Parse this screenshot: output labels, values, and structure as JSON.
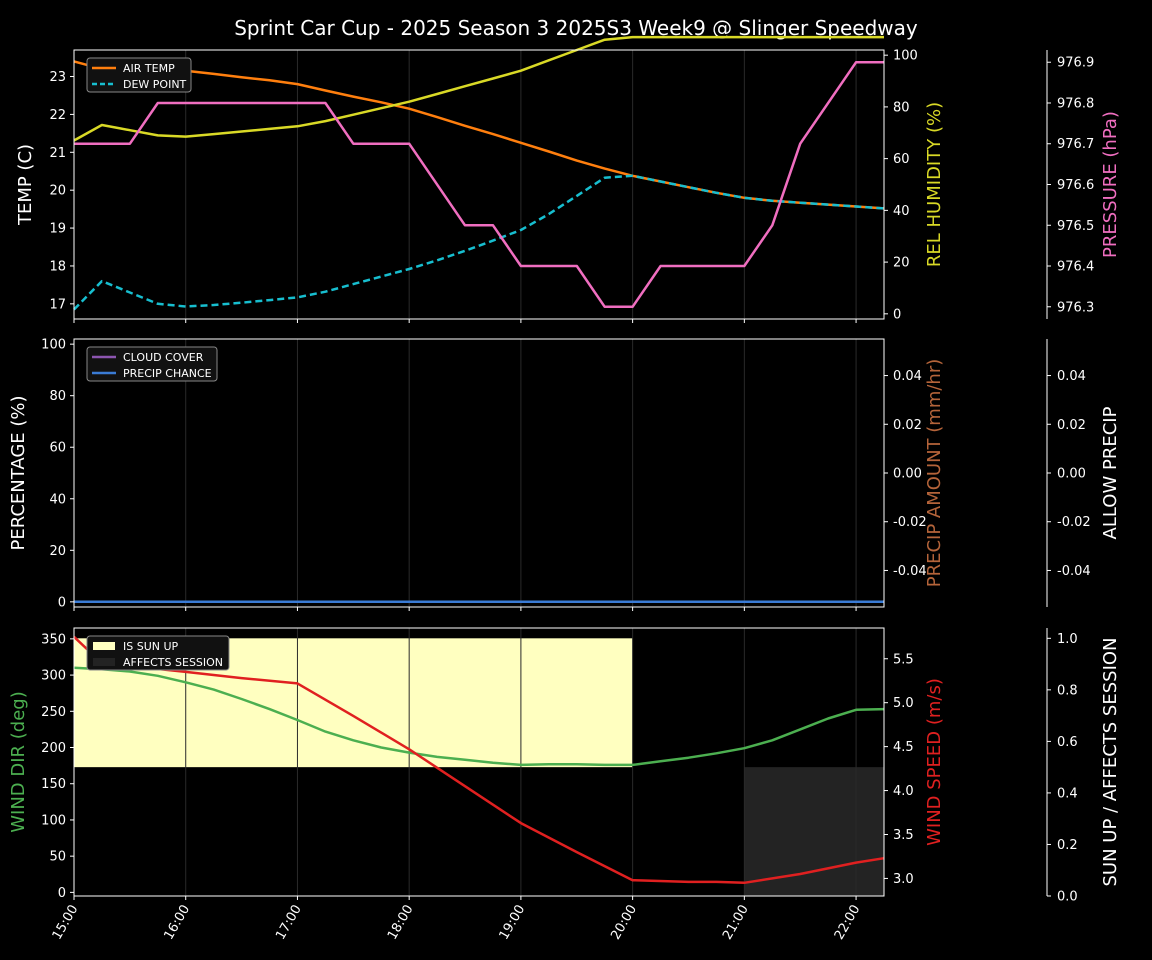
{
  "title": "Sprint Car Cup - 2025 Season 3 2025S3 Week9 @ Slinger Speedway",
  "colors": {
    "air_temp": "#ff7f0e",
    "dew_point": "#17becf",
    "humidity": "#d9d926",
    "pressure": "#f06ec0",
    "cloud_cover": "#8c55b0",
    "precip_chance": "#3a7bd5",
    "precip_amount": "#b5643a",
    "wind_dir": "#4caf50",
    "wind_speed": "#e02020",
    "sun_up": "#ffffc0",
    "affects_session": "#232323"
  },
  "chart_data": [
    {
      "type": "line",
      "panel": "top",
      "x_ticks": [
        "15:00",
        "16:00",
        "17:00",
        "18:00",
        "19:00",
        "20:00",
        "21:00",
        "22:00"
      ],
      "xlim": [
        15.0,
        22.25
      ],
      "ylabel": "TEMP (C)",
      "ylim": [
        16.6,
        23.7
      ],
      "yticks": [
        17,
        18,
        19,
        20,
        21,
        22,
        23
      ],
      "ylabel2": "REL HUMIDITY (%)",
      "ylim2": [
        -2,
        102
      ],
      "yticks2": [
        0,
        20,
        40,
        60,
        80,
        100
      ],
      "ylabel3": "PRESSURE (hPa)",
      "ylim3": [
        976.27,
        976.93
      ],
      "yticks3": [
        "976.3",
        "976.4",
        "976.5",
        "976.6",
        "976.7",
        "976.8",
        "976.9"
      ],
      "legend": [
        "AIR TEMP",
        "DEW POINT"
      ],
      "legend_position": "top-left",
      "series": [
        {
          "name": "AIR TEMP",
          "axis": "left",
          "x": [
            15,
            15.25,
            15.5,
            15.75,
            16,
            16.25,
            16.5,
            16.75,
            17,
            17.25,
            17.5,
            17.75,
            18,
            18.25,
            18.5,
            18.75,
            19,
            19.25,
            19.5,
            19.75,
            20,
            20.25,
            20.5,
            20.75,
            21,
            21.25,
            21.5,
            21.75,
            22,
            22.25
          ],
          "values": [
            23.4,
            23.2,
            23.2,
            23.2,
            23.15,
            23.07,
            22.98,
            22.9,
            22.8,
            22.63,
            22.47,
            22.32,
            22.15,
            21.93,
            21.7,
            21.48,
            21.25,
            21.02,
            20.78,
            20.57,
            20.38,
            20.23,
            20.08,
            19.93,
            19.8,
            19.72,
            19.67,
            19.62,
            19.57,
            19.52
          ]
        },
        {
          "name": "DEW POINT",
          "axis": "left",
          "x": [
            15,
            15.25,
            15.5,
            15.75,
            16,
            16.25,
            16.5,
            16.75,
            17,
            17.25,
            17.5,
            17.75,
            18,
            18.25,
            18.5,
            18.75,
            19,
            19.25,
            19.5,
            19.75,
            20,
            20.25,
            20.5,
            20.75,
            21,
            21.25,
            21.5,
            21.75,
            22,
            22.25
          ],
          "values": [
            16.85,
            17.6,
            17.3,
            17.0,
            16.93,
            16.97,
            17.03,
            17.1,
            17.17,
            17.32,
            17.52,
            17.72,
            17.92,
            18.15,
            18.4,
            18.67,
            18.95,
            19.37,
            19.85,
            20.33,
            20.38,
            20.23,
            20.08,
            19.93,
            19.8,
            19.72,
            19.67,
            19.62,
            19.57,
            19.52
          ]
        },
        {
          "name": "REL HUMIDITY",
          "axis": "right",
          "x": [
            15,
            15.25,
            15.5,
            15.75,
            16,
            16.25,
            16.5,
            16.75,
            17,
            17.25,
            17.5,
            17.75,
            18,
            18.25,
            18.5,
            18.75,
            19,
            19.25,
            19.5,
            19.75,
            20,
            20.25,
            20.5,
            20.75,
            21,
            21.25,
            21.5,
            21.75,
            22,
            22.25
          ],
          "values": [
            67,
            73,
            71,
            69,
            68.5,
            69.5,
            70.5,
            71.5,
            72.5,
            74.5,
            77,
            79.5,
            82,
            85,
            88,
            91,
            94,
            98,
            102,
            106,
            107,
            107,
            107,
            107,
            107,
            107,
            107,
            107,
            107,
            107
          ]
        },
        {
          "name": "PRESSURE",
          "axis": "third",
          "x": [
            15,
            15.5,
            15.75,
            17.25,
            17.5,
            18,
            18.5,
            18.75,
            19,
            19.5,
            19.75,
            20,
            20.25,
            21,
            21.25,
            21.5,
            22,
            22.25
          ],
          "values": [
            976.7,
            976.7,
            976.8,
            976.8,
            976.7,
            976.7,
            976.5,
            976.5,
            976.4,
            976.4,
            976.3,
            976.3,
            976.4,
            976.4,
            976.5,
            976.7,
            976.9,
            976.9
          ]
        }
      ]
    },
    {
      "type": "line",
      "panel": "middle",
      "ylabel": "PERCENTAGE (%)",
      "ylim": [
        -2,
        102
      ],
      "yticks": [
        0,
        20,
        40,
        60,
        80,
        100
      ],
      "ylabel2": "PRECIP AMOUNT (mm/hr)",
      "ylim2": [
        -0.055,
        0.055
      ],
      "yticks2": [
        "-0.04",
        "-0.02",
        "0.00",
        "0.02",
        "0.04"
      ],
      "ylabel3": "ALLOW PRECIP",
      "ylim3": [
        -0.055,
        0.055
      ],
      "yticks3": [
        "-0.04",
        "-0.02",
        "0.00",
        "0.02",
        "0.04"
      ],
      "legend": [
        "CLOUD COVER",
        "PRECIP CHANCE"
      ],
      "legend_position": "top-left",
      "series": [
        {
          "name": "CLOUD COVER",
          "x": [
            15,
            22.25
          ],
          "values": [
            0,
            0
          ]
        },
        {
          "name": "PRECIP CHANCE",
          "x": [
            15,
            22.25
          ],
          "values": [
            0,
            0
          ]
        }
      ]
    },
    {
      "type": "line",
      "panel": "bottom",
      "ylabel": "WIND DIR (deg)",
      "ylim": [
        -5,
        365
      ],
      "yticks": [
        0,
        50,
        100,
        150,
        200,
        250,
        300,
        350
      ],
      "ylabel2": "WIND SPEED (m/s)",
      "ylim2": [
        2.8,
        5.85
      ],
      "yticks2": [
        "3.0",
        "3.5",
        "4.0",
        "4.5",
        "5.0",
        "5.5"
      ],
      "ylabel3": "SUN UP / AFFECTS SESSION",
      "ylim3": [
        0,
        1.04
      ],
      "yticks3": [
        "0.0",
        "0.2",
        "0.4",
        "0.6",
        "0.8",
        "1.0"
      ],
      "legend": [
        "IS SUN UP",
        "AFFECTS SESSION"
      ],
      "legend_position": "top-left",
      "bands": [
        {
          "name": "IS SUN UP",
          "x0": 15,
          "x1": 20,
          "y0": 0.5,
          "y1": 1.0
        },
        {
          "name": "AFFECTS SESSION",
          "x0": 21,
          "x1": 22.25,
          "y0": 0,
          "y1": 0.5
        }
      ],
      "series": [
        {
          "name": "WIND DIR",
          "axis": "left",
          "x": [
            15,
            15.25,
            15.5,
            15.75,
            16,
            16.25,
            16.5,
            16.75,
            17,
            17.25,
            17.5,
            17.75,
            18,
            18.25,
            18.5,
            18.75,
            19,
            19.25,
            19.5,
            19.75,
            20,
            20.25,
            20.5,
            20.75,
            21,
            21.25,
            21.5,
            21.75,
            22,
            22.25
          ],
          "values": [
            310,
            308,
            305,
            299,
            290,
            280,
            267,
            253,
            238,
            222,
            210,
            200,
            193,
            187,
            183,
            179,
            176,
            177,
            177,
            176,
            176,
            181,
            186,
            192,
            199,
            210,
            225,
            240,
            252,
            253
          ]
        },
        {
          "name": "WIND SPEED",
          "axis": "right",
          "x": [
            15,
            15.25,
            16,
            16.5,
            17,
            17.5,
            18,
            18.5,
            19,
            19.5,
            20,
            20.5,
            20.75,
            21,
            21.5,
            22,
            22.25
          ],
          "values": [
            5.75,
            5.45,
            5.35,
            5.28,
            5.22,
            4.85,
            4.47,
            4.05,
            3.63,
            3.3,
            2.98,
            2.96,
            2.96,
            2.95,
            3.05,
            3.18,
            3.23
          ]
        }
      ]
    }
  ]
}
